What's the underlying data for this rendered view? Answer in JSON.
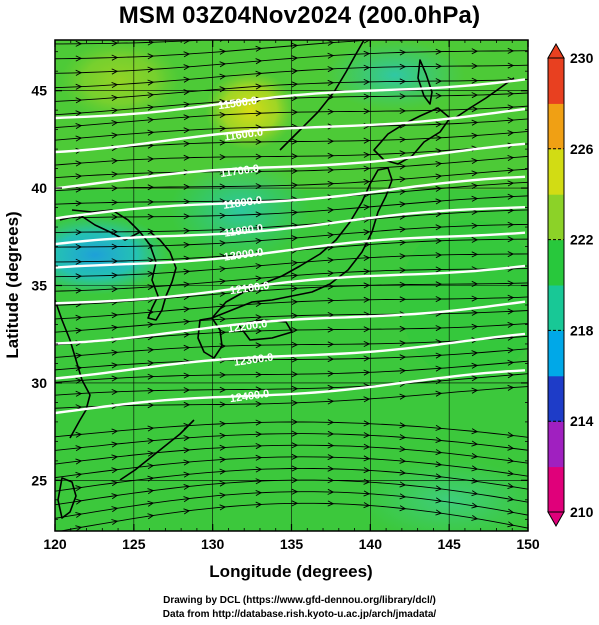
{
  "title": "MSM 03Z04Nov2024 (200.0hPa)",
  "map": {
    "x_axis": {
      "label": "Longitude (degrees)",
      "range": [
        120,
        150
      ],
      "ticks": [
        120,
        125,
        130,
        135,
        140,
        145,
        150
      ]
    },
    "y_axis": {
      "label": "Latitude  (degrees)",
      "range": [
        22.4,
        47.6
      ],
      "ticks": [
        25,
        30,
        35,
        40,
        45
      ]
    },
    "grid": true,
    "layers": [
      "shaded temperature",
      "geopotential height contours",
      "wind streamlines",
      "coastlines"
    ],
    "contour_labels": [
      "11500.0",
      "11600.0",
      "11700.0",
      "11800.0",
      "11900.0",
      "12000.0",
      "12100.0",
      "12200.0",
      "12300.0",
      "12400.0"
    ],
    "contour_color": "#ffffff",
    "streamline_color": "#000000"
  },
  "colorbar": {
    "range": [
      210,
      230
    ],
    "tick_labels": [
      "230",
      "226",
      "222",
      "218",
      "214",
      "210"
    ],
    "colors": [
      "#e0007a",
      "#a020c0",
      "#1e3cc8",
      "#00a8e8",
      "#18c896",
      "#28c83c",
      "#8cd228",
      "#d2dc14",
      "#f0a014",
      "#e84020"
    ]
  },
  "credits": {
    "line1": "Drawing by DCL (https://www.gfd-dennou.org/library/dcl/)",
    "line2": "Data from http://database.rish.kyoto-u.ac.jp/arch/jmadata/"
  }
}
